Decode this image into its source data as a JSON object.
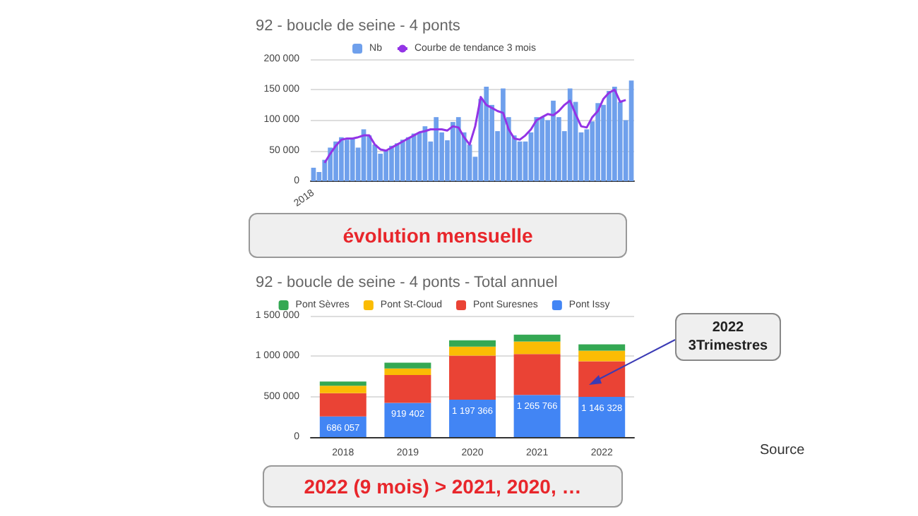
{
  "chart_data": [
    {
      "type": "bar",
      "title": "92 - boucle de seine - 4 ponts",
      "categories": [
        "2018",
        null,
        null,
        null,
        null,
        null,
        null,
        null,
        null,
        null,
        null,
        null,
        null,
        null,
        null,
        null,
        null,
        null,
        null,
        null,
        null,
        null,
        null,
        null,
        null,
        null,
        null,
        null,
        null,
        null,
        null,
        null,
        null,
        null,
        null,
        null,
        null,
        null,
        null,
        null,
        null,
        null,
        null,
        null,
        null,
        null,
        null,
        null,
        null,
        null,
        null,
        null,
        null,
        null,
        null,
        null,
        null,
        null
      ],
      "series": [
        {
          "name": "Nb",
          "color": "#6fa0ec",
          "values": [
            22000,
            15000,
            35000,
            55000,
            65000,
            72000,
            68000,
            70000,
            55000,
            85000,
            75000,
            60000,
            45000,
            50000,
            58000,
            62000,
            68000,
            72000,
            78000,
            80000,
            90000,
            65000,
            105000,
            80000,
            67000,
            97000,
            105000,
            80000,
            60000,
            40000,
            135000,
            155000,
            125000,
            82000,
            152000,
            105000,
            75000,
            65000,
            65000,
            80000,
            105000,
            105000,
            100000,
            132000,
            105000,
            82000,
            152000,
            130000,
            80000,
            85000,
            98000,
            128000,
            125000,
            148000,
            155000,
            130000,
            100000,
            165000
          ]
        },
        {
          "name": "Courbe de tendance 3 mois",
          "type": "line",
          "color": "#9334e6",
          "values": [
            null,
            null,
            30000,
            45000,
            58000,
            68000,
            70000,
            70000,
            72000,
            75000,
            75000,
            60000,
            52000,
            50000,
            55000,
            60000,
            65000,
            70000,
            75000,
            80000,
            82000,
            85000,
            85000,
            85000,
            83000,
            90000,
            88000,
            72000,
            60000,
            90000,
            138000,
            125000,
            120000,
            115000,
            112000,
            85000,
            70000,
            68000,
            75000,
            85000,
            100000,
            105000,
            110000,
            108000,
            115000,
            125000,
            132000,
            110000,
            90000,
            88000,
            105000,
            115000,
            135000,
            145000,
            150000,
            130000,
            133000,
            null
          ]
        }
      ],
      "ylim": [
        0,
        200000
      ],
      "yticks": [
        {
          "value": 0,
          "label": "0"
        },
        {
          "value": 50000,
          "label": "50 000"
        },
        {
          "value": 100000,
          "label": "100 000"
        },
        {
          "value": 150000,
          "label": "150 000"
        },
        {
          "value": 200000,
          "label": "200 000"
        }
      ],
      "grid": "y",
      "legend": "top",
      "marker": "none",
      "annotations": [
        "évolution mensuelle"
      ]
    },
    {
      "type": "bar",
      "title": "92 - boucle de seine - 4 ponts - Total annuel",
      "stacked": true,
      "categories": [
        "2018",
        "2019",
        "2020",
        "2021",
        "2022"
      ],
      "series": [
        {
          "name": "Pont Issy",
          "color": "#4285f4",
          "values": [
            255000,
            424000,
            463000,
            520000,
            497000
          ]
        },
        {
          "name": "Pont Suresnes",
          "color": "#ea4335",
          "values": [
            287057,
            344402,
            543366,
            507766,
            441328
          ]
        },
        {
          "name": "Pont St-Cloud",
          "color": "#fbbc04",
          "values": [
            93000,
            79000,
            113000,
            153000,
            130000
          ]
        },
        {
          "name": "Pont Sèvres",
          "color": "#34a853",
          "values": [
            51000,
            72000,
            78000,
            85000,
            78000
          ]
        }
      ],
      "totals": [
        "686 057",
        "919 402",
        "1 197 366",
        "1 265 766",
        "1 146 328"
      ],
      "ylim": [
        0,
        1500000
      ],
      "yticks": [
        {
          "value": 0,
          "label": "0"
        },
        {
          "value": 500000,
          "label": "500 000"
        },
        {
          "value": 1000000,
          "label": "1 000 000"
        },
        {
          "value": 1500000,
          "label": "1 500 000"
        }
      ],
      "grid": "y",
      "legend": "top",
      "annotations": [
        "2022\n3Trimestres",
        "2022 (9 mois) > 2021, 2020, …",
        "Source"
      ]
    }
  ]
}
